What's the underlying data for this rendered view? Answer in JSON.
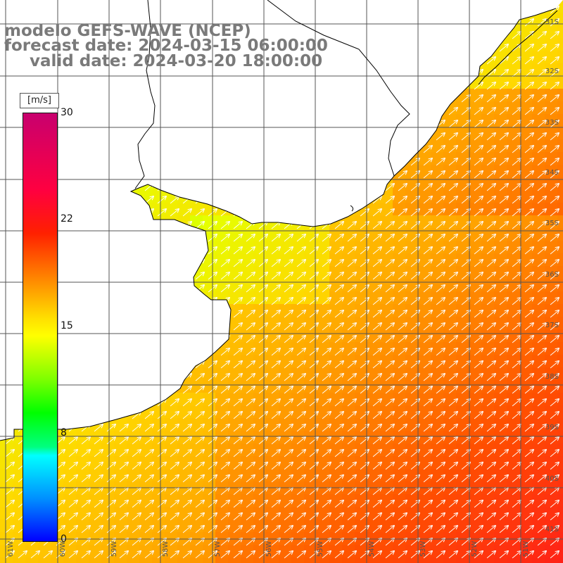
{
  "header": {
    "title_line1": "modelo GEFS-WAVE (NCEP)",
    "title_line2": "forecast date: 2024-03-15 06:00:00",
    "title_line3": "valid date: 2024-03-20 18:00:00"
  },
  "colorbar": {
    "unit": "[m/s]",
    "min": 0,
    "max": 30,
    "tick_labels": [
      "30",
      "22",
      "15",
      "8",
      "0"
    ],
    "tick_values": [
      30,
      22,
      15,
      8,
      0
    ]
  },
  "map": {
    "field": "wind speed",
    "longitude_labels": [
      "61W",
      "60W",
      "59W",
      "58W",
      "57W",
      "56W",
      "55W",
      "54W",
      "53W",
      "52W",
      "51W"
    ],
    "latitude_labels": [
      "31S",
      "32S",
      "33S",
      "34S",
      "35S",
      "36S",
      "37S",
      "38S",
      "39S",
      "40S",
      "41S"
    ],
    "arrow_direction": "toward northeast",
    "colors": {
      "land": "#ffffff",
      "coastline": "#000000",
      "grid": "#555555",
      "arrows": "#ffffff",
      "label_gray": "#7a7a7a"
    }
  }
}
